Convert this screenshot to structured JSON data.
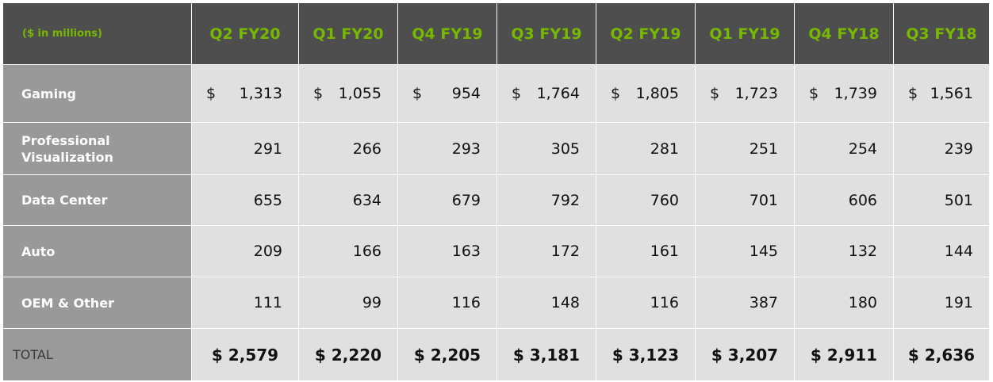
{
  "chart_data": {
    "type": "table",
    "unit_label": "($ in millions)",
    "columns": [
      "Q2 FY20",
      "Q1 FY20",
      "Q4 FY19",
      "Q3 FY19",
      "Q2 FY19",
      "Q1 FY19",
      "Q4 FY18",
      "Q3 FY18"
    ],
    "rows": [
      {
        "label": "Gaming",
        "values": [
          "1,313",
          "1,055",
          "954",
          "1,764",
          "1,805",
          "1,723",
          "1,739",
          "1,561"
        ],
        "currency": "$"
      },
      {
        "label": "Professional Visualization",
        "values": [
          "291",
          "266",
          "293",
          "305",
          "281",
          "251",
          "254",
          "239"
        ],
        "currency": ""
      },
      {
        "label": "Data Center",
        "values": [
          "655",
          "634",
          "679",
          "792",
          "760",
          "701",
          "606",
          "501"
        ],
        "currency": ""
      },
      {
        "label": "Auto",
        "values": [
          "209",
          "166",
          "163",
          "172",
          "161",
          "145",
          "132",
          "144"
        ],
        "currency": ""
      },
      {
        "label": "OEM & Other",
        "values": [
          "111",
          "99",
          "116",
          "148",
          "116",
          "387",
          "180",
          "191"
        ],
        "currency": ""
      }
    ],
    "total": {
      "label": "TOTAL",
      "values": [
        "$ 2,579",
        "$ 2,220",
        "$ 2,205",
        "$ 3,181",
        "$ 3,123",
        "$ 3,207",
        "$ 2,911",
        "$ 2,636"
      ]
    },
    "colors": {
      "header_bg": "#4e4e4e",
      "header_text": "#76b900",
      "label_bg": "#999999",
      "cell_bg": "#e0e0e0"
    }
  }
}
